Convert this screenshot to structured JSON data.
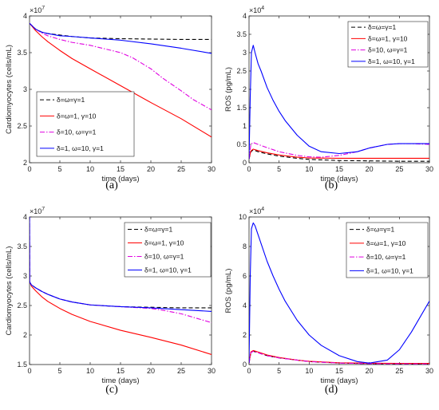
{
  "figure": {
    "panel_labels": [
      "(a)",
      "(b)",
      "(c)",
      "(d)"
    ]
  },
  "chart_data": [
    {
      "type": "line",
      "panel": "(a)",
      "xlabel": "time (days)",
      "ylabel": "Cardiomyocytes (cells/mL)",
      "exponent": "×10^7",
      "xlim": [
        0,
        30
      ],
      "ylim": [
        2.0,
        4.0
      ],
      "xticks": [
        0,
        5,
        10,
        15,
        20,
        25,
        30
      ],
      "yticks": [
        2,
        2.5,
        3,
        3.5,
        4
      ],
      "ytick_labels": [
        "2",
        "2.5",
        "3",
        "3.5",
        "4"
      ],
      "grid": false,
      "legend_position": "bottom-left",
      "series": [
        {
          "name": "δ=ω=γ=1",
          "color": "#000000",
          "dash": "dashed",
          "x": [
            0,
            0.5,
            1,
            2,
            3,
            5,
            7,
            10,
            15,
            20,
            25,
            30
          ],
          "y": [
            3.9,
            3.86,
            3.82,
            3.78,
            3.76,
            3.74,
            3.72,
            3.7,
            3.69,
            3.685,
            3.68,
            3.68
          ]
        },
        {
          "name": "δ=ω=1, γ=10",
          "color": "#ff0000",
          "dash": "solid",
          "x": [
            0,
            0.5,
            1,
            2,
            3,
            5,
            7,
            10,
            15,
            20,
            25,
            30
          ],
          "y": [
            3.9,
            3.85,
            3.8,
            3.72,
            3.65,
            3.53,
            3.42,
            3.28,
            3.05,
            2.82,
            2.6,
            2.35
          ]
        },
        {
          "name": "δ=10, ω=γ=1",
          "color": "#e000e0",
          "dash": "dashdot",
          "x": [
            0,
            0.5,
            1,
            2,
            3,
            5,
            7,
            10,
            12,
            15,
            17,
            20,
            22,
            25,
            27,
            30
          ],
          "y": [
            3.9,
            3.86,
            3.82,
            3.77,
            3.73,
            3.68,
            3.64,
            3.6,
            3.56,
            3.5,
            3.43,
            3.28,
            3.15,
            2.98,
            2.86,
            2.72
          ]
        },
        {
          "name": "δ=1, ω=10, γ=1",
          "color": "#0000ff",
          "dash": "solid",
          "x": [
            0,
            0.5,
            1,
            2,
            3,
            5,
            7,
            10,
            15,
            20,
            25,
            30
          ],
          "y": [
            3.9,
            3.86,
            3.82,
            3.78,
            3.76,
            3.73,
            3.72,
            3.7,
            3.67,
            3.62,
            3.56,
            3.49
          ]
        }
      ]
    },
    {
      "type": "line",
      "panel": "(b)",
      "xlabel": "time (days)",
      "ylabel": "ROS (pg/mL)",
      "exponent": "×10^4",
      "xlim": [
        0,
        30
      ],
      "ylim": [
        0,
        4
      ],
      "xticks": [
        0,
        5,
        10,
        15,
        20,
        25,
        30
      ],
      "yticks": [
        0,
        0.5,
        1,
        1.5,
        2,
        2.5,
        3,
        3.5,
        4
      ],
      "ytick_labels": [
        "0",
        "0.5",
        "1",
        "1.5",
        "2",
        "2.5",
        "3",
        "3.5",
        "4"
      ],
      "grid": false,
      "legend_position": "top-right",
      "series": [
        {
          "name": "δ=ω=γ=1",
          "color": "#000000",
          "dash": "dashed",
          "x": [
            0,
            0.3,
            0.7,
            1.5,
            3,
            5,
            8,
            10,
            15,
            20,
            25,
            30
          ],
          "y": [
            0.1,
            0.3,
            0.35,
            0.3,
            0.24,
            0.18,
            0.12,
            0.09,
            0.06,
            0.05,
            0.04,
            0.04
          ]
        },
        {
          "name": "δ=ω=1, γ=10",
          "color": "#ff0000",
          "dash": "solid",
          "x": [
            0,
            0.3,
            0.7,
            1.5,
            3,
            5,
            8,
            10,
            15,
            20,
            25,
            30
          ],
          "y": [
            0.1,
            0.32,
            0.37,
            0.33,
            0.27,
            0.21,
            0.15,
            0.13,
            0.12,
            0.12,
            0.12,
            0.12
          ]
        },
        {
          "name": "δ=10, ω=γ=1",
          "color": "#e000e0",
          "dash": "dashdot",
          "x": [
            0,
            0.3,
            0.7,
            1.5,
            3,
            5,
            8,
            10,
            12,
            15,
            18,
            20,
            23,
            25,
            27,
            30
          ],
          "y": [
            0.1,
            0.5,
            0.55,
            0.5,
            0.41,
            0.3,
            0.2,
            0.16,
            0.15,
            0.2,
            0.3,
            0.4,
            0.5,
            0.52,
            0.52,
            0.5
          ]
        },
        {
          "name": "δ=1, ω=10, γ=1",
          "color": "#0000ff",
          "dash": "solid",
          "x": [
            0,
            0.2,
            0.4,
            0.7,
            1,
            1.5,
            2,
            3,
            4,
            5,
            6,
            8,
            10,
            12,
            15,
            18,
            20,
            23,
            25,
            27,
            30
          ],
          "y": [
            0.1,
            1.8,
            3.0,
            3.2,
            3.0,
            2.7,
            2.5,
            2.05,
            1.7,
            1.4,
            1.15,
            0.75,
            0.45,
            0.3,
            0.25,
            0.3,
            0.4,
            0.5,
            0.52,
            0.52,
            0.52
          ]
        }
      ]
    },
    {
      "type": "line",
      "panel": "(c)",
      "xlabel": "time (days)",
      "ylabel": "Cardiomyocytes (cells/mL)",
      "exponent": "×10^7",
      "xlim": [
        0,
        30
      ],
      "ylim": [
        1.5,
        4.0
      ],
      "xticks": [
        0,
        5,
        10,
        15,
        20,
        25,
        30
      ],
      "yticks": [
        1.5,
        2,
        2.5,
        3,
        3.5,
        4
      ],
      "ytick_labels": [
        "1.5",
        "2",
        "2.5",
        "3",
        "3.5",
        "4"
      ],
      "grid": false,
      "legend_position": "top-right",
      "series": [
        {
          "name": "δ=ω=γ=1",
          "color": "#000000",
          "dash": "dashed",
          "x": [
            0,
            0.02,
            0.3,
            1,
            2,
            3,
            5,
            7,
            10,
            15,
            20,
            25,
            30
          ],
          "y": [
            4.0,
            2.9,
            2.85,
            2.8,
            2.74,
            2.69,
            2.61,
            2.56,
            2.51,
            2.48,
            2.47,
            2.46,
            2.46
          ]
        },
        {
          "name": "δ=ω=1, γ=10",
          "color": "#ff0000",
          "dash": "solid",
          "x": [
            0,
            0.02,
            0.3,
            1,
            2,
            3,
            5,
            7,
            10,
            15,
            20,
            25,
            30
          ],
          "y": [
            4.0,
            2.9,
            2.83,
            2.75,
            2.65,
            2.57,
            2.45,
            2.35,
            2.23,
            2.08,
            1.96,
            1.83,
            1.67
          ]
        },
        {
          "name": "δ=10, ω=γ=1",
          "color": "#e000e0",
          "dash": "dashdot",
          "x": [
            0,
            0.02,
            0.3,
            1,
            2,
            3,
            5,
            7,
            10,
            15,
            20,
            22,
            25,
            30
          ],
          "y": [
            4.0,
            2.9,
            2.85,
            2.8,
            2.74,
            2.69,
            2.61,
            2.56,
            2.51,
            2.48,
            2.45,
            2.42,
            2.36,
            2.21
          ]
        },
        {
          "name": "δ=1, ω=10, γ=1",
          "color": "#0000ff",
          "dash": "solid",
          "x": [
            0,
            0.02,
            0.3,
            1,
            2,
            3,
            5,
            7,
            10,
            15,
            20,
            25,
            30
          ],
          "y": [
            4.0,
            2.9,
            2.85,
            2.8,
            2.74,
            2.69,
            2.61,
            2.56,
            2.51,
            2.48,
            2.46,
            2.43,
            2.4
          ]
        }
      ]
    },
    {
      "type": "line",
      "panel": "(d)",
      "xlabel": "time (days)",
      "ylabel": "ROS (pg/mL)",
      "exponent": "×10^4",
      "xlim": [
        0,
        30
      ],
      "ylim": [
        0,
        10
      ],
      "xticks": [
        0,
        5,
        10,
        15,
        20,
        25,
        30
      ],
      "yticks": [
        0,
        2,
        4,
        6,
        8,
        10
      ],
      "ytick_labels": [
        "0",
        "2",
        "4",
        "6",
        "8",
        "10"
      ],
      "grid": false,
      "legend_position": "top-right",
      "series": [
        {
          "name": "δ=ω=γ=1",
          "color": "#000000",
          "dash": "dashed",
          "x": [
            0,
            0.3,
            0.7,
            1.5,
            3,
            5,
            8,
            10,
            15,
            20,
            25,
            30
          ],
          "y": [
            0.1,
            0.8,
            0.9,
            0.8,
            0.6,
            0.45,
            0.3,
            0.2,
            0.1,
            0.06,
            0.04,
            0.03
          ]
        },
        {
          "name": "δ=ω=1, γ=10",
          "color": "#ff0000",
          "dash": "solid",
          "x": [
            0,
            0.3,
            0.7,
            1.5,
            3,
            5,
            8,
            10,
            15,
            20,
            25,
            30
          ],
          "y": [
            0.1,
            0.85,
            0.95,
            0.85,
            0.65,
            0.48,
            0.3,
            0.22,
            0.12,
            0.09,
            0.08,
            0.08
          ]
        },
        {
          "name": "δ=10, ω=γ=1",
          "color": "#e000e0",
          "dash": "dashdot",
          "x": [
            0,
            0.3,
            0.7,
            1.5,
            3,
            5,
            8,
            10,
            15,
            20,
            25,
            30
          ],
          "y": [
            0.1,
            0.8,
            0.9,
            0.8,
            0.6,
            0.45,
            0.3,
            0.2,
            0.1,
            0.06,
            0.05,
            0.04
          ]
        },
        {
          "name": "δ=1, ω=10, γ=1",
          "color": "#0000ff",
          "dash": "solid",
          "x": [
            0,
            0.2,
            0.4,
            0.7,
            1,
            1.5,
            2,
            3,
            4,
            5,
            6,
            8,
            10,
            12,
            15,
            18,
            20,
            23,
            25,
            27,
            30
          ],
          "y": [
            0.1,
            6.0,
            9.2,
            9.6,
            9.4,
            8.8,
            8.2,
            7.0,
            6.0,
            5.1,
            4.3,
            3.0,
            2.0,
            1.3,
            0.6,
            0.2,
            0.1,
            0.3,
            1.0,
            2.2,
            4.3
          ]
        }
      ]
    }
  ]
}
